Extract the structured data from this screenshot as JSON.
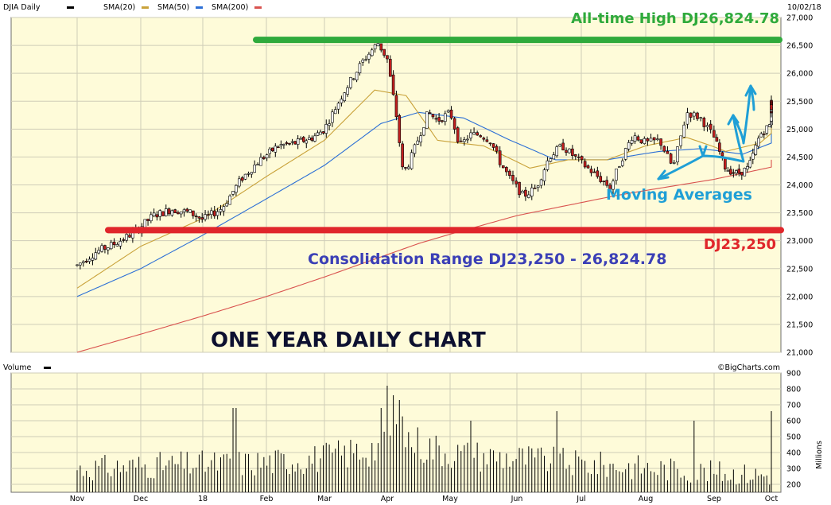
{
  "header": {
    "symbol_label": "DJIA Daily",
    "legend": [
      {
        "label": "SMA(20)",
        "color": "#c9a23a"
      },
      {
        "label": "SMA(50)",
        "color": "#2c6fd6"
      },
      {
        "label": "SMA(200)",
        "color": "#d9534f"
      }
    ],
    "date": "10/02/18"
  },
  "volume_panel": {
    "label": "Volume",
    "credit": "©BigCharts.com",
    "unit_label": "Millions"
  },
  "annotations": {
    "all_time_high": "All-time High DJ26,824.78",
    "support": "DJ23,250",
    "range": "Consolidation Range DJ23,250 - 26,824.78",
    "moving_averages": "Moving Averages",
    "chart_title": "ONE YEAR DAILY CHART"
  },
  "colors": {
    "plot_bg": "#fefbd9",
    "grid": "#cfcdb8",
    "ath_line": "#2faa3c",
    "support_line": "#e0262b",
    "sma20": "#c9a23a",
    "sma50": "#2c6fd6",
    "sma200": "#d9534f",
    "arrow": "#1f9fd6"
  },
  "chart_data": [
    {
      "type": "candlestick",
      "name": "DJIA Daily",
      "x_ticks": [
        "Nov",
        "Dec",
        "18",
        "Feb",
        "Mar",
        "Apr",
        "May",
        "Jun",
        "Jul",
        "Aug",
        "Sep",
        "Oct"
      ],
      "y_ticks": [
        "27,000",
        "26,500",
        "26,000",
        "25,500",
        "25,000",
        "24,500",
        "24,000",
        "23,500",
        "23,000",
        "22,500",
        "22,000",
        "21,500",
        "21,000"
      ],
      "ylim": [
        21000,
        27000
      ],
      "xlim_month": [
        0,
        11.6
      ],
      "grid": true,
      "price_points": [
        {
          "m": 0.0,
          "v": 22560
        },
        {
          "m": 0.3,
          "v": 22800
        },
        {
          "m": 0.6,
          "v": 22950
        },
        {
          "m": 0.9,
          "v": 23150
        },
        {
          "m": 1.2,
          "v": 23450
        },
        {
          "m": 1.5,
          "v": 23560
        },
        {
          "m": 1.8,
          "v": 23500
        },
        {
          "m": 2.0,
          "v": 23380
        },
        {
          "m": 2.3,
          "v": 23580
        },
        {
          "m": 2.6,
          "v": 24100
        },
        {
          "m": 2.9,
          "v": 24450
        },
        {
          "m": 3.2,
          "v": 24700
        },
        {
          "m": 3.5,
          "v": 24750
        },
        {
          "m": 3.8,
          "v": 24850
        },
        {
          "m": 4.0,
          "v": 25000
        },
        {
          "m": 4.3,
          "v": 25650
        },
        {
          "m": 4.6,
          "v": 26200
        },
        {
          "m": 4.85,
          "v": 26550
        },
        {
          "m": 5.0,
          "v": 26250
        },
        {
          "m": 5.15,
          "v": 25200
        },
        {
          "m": 5.25,
          "v": 24200
        },
        {
          "m": 5.35,
          "v": 24400
        },
        {
          "m": 5.5,
          "v": 24850
        },
        {
          "m": 5.65,
          "v": 25300
        },
        {
          "m": 5.8,
          "v": 25150
        },
        {
          "m": 6.0,
          "v": 25300
        },
        {
          "m": 6.15,
          "v": 24700
        },
        {
          "m": 6.3,
          "v": 24900
        },
        {
          "m": 6.45,
          "v": 24900
        },
        {
          "m": 6.6,
          "v": 24800
        },
        {
          "m": 6.75,
          "v": 24400
        },
        {
          "m": 6.9,
          "v": 24100
        },
        {
          "m": 7.1,
          "v": 23800
        },
        {
          "m": 7.3,
          "v": 23950
        },
        {
          "m": 7.5,
          "v": 24500
        },
        {
          "m": 7.7,
          "v": 24700
        },
        {
          "m": 7.9,
          "v": 24500
        },
        {
          "m": 8.1,
          "v": 24300
        },
        {
          "m": 8.3,
          "v": 24100
        },
        {
          "m": 8.45,
          "v": 23950
        },
        {
          "m": 8.6,
          "v": 24400
        },
        {
          "m": 8.8,
          "v": 24900
        },
        {
          "m": 9.0,
          "v": 24750
        },
        {
          "m": 9.2,
          "v": 24800
        },
        {
          "m": 9.4,
          "v": 24300
        },
        {
          "m": 9.6,
          "v": 25300
        },
        {
          "m": 9.8,
          "v": 25200
        },
        {
          "m": 10.0,
          "v": 24850
        },
        {
          "m": 10.2,
          "v": 24300
        },
        {
          "m": 10.4,
          "v": 24200
        },
        {
          "m": 10.6,
          "v": 24300
        },
        {
          "m": 10.8,
          "v": 24900
        },
        {
          "m": 11.0,
          "v": 25100
        },
        {
          "m": 11.2,
          "v": 25400
        },
        {
          "m": 11.4,
          "v": 25550
        },
        {
          "m": 11.6,
          "v": 25400
        }
      ],
      "sma20_points": [
        {
          "m": 0.0,
          "v": 22150
        },
        {
          "m": 1.0,
          "v": 22900
        },
        {
          "m": 2.0,
          "v": 23400
        },
        {
          "m": 3.0,
          "v": 24150
        },
        {
          "m": 4.0,
          "v": 24800
        },
        {
          "m": 4.8,
          "v": 25700
        },
        {
          "m": 5.3,
          "v": 25600
        },
        {
          "m": 5.8,
          "v": 24800
        },
        {
          "m": 6.5,
          "v": 24700
        },
        {
          "m": 7.2,
          "v": 24300
        },
        {
          "m": 7.8,
          "v": 24450
        },
        {
          "m": 8.4,
          "v": 24450
        },
        {
          "m": 9.0,
          "v": 24700
        },
        {
          "m": 9.6,
          "v": 24850
        },
        {
          "m": 10.2,
          "v": 24600
        },
        {
          "m": 10.8,
          "v": 24750
        },
        {
          "m": 11.6,
          "v": 25450
        }
      ],
      "sma50_points": [
        {
          "m": 0.0,
          "v": 22000
        },
        {
          "m": 1.0,
          "v": 22500
        },
        {
          "m": 2.0,
          "v": 23100
        },
        {
          "m": 3.0,
          "v": 23750
        },
        {
          "m": 4.0,
          "v": 24350
        },
        {
          "m": 4.9,
          "v": 25100
        },
        {
          "m": 5.5,
          "v": 25300
        },
        {
          "m": 6.2,
          "v": 25200
        },
        {
          "m": 6.9,
          "v": 24800
        },
        {
          "m": 7.6,
          "v": 24450
        },
        {
          "m": 8.4,
          "v": 24450
        },
        {
          "m": 9.2,
          "v": 24600
        },
        {
          "m": 9.8,
          "v": 24650
        },
        {
          "m": 10.5,
          "v": 24550
        },
        {
          "m": 11.0,
          "v": 24750
        },
        {
          "m": 11.6,
          "v": 25200
        }
      ],
      "sma200_points": [
        {
          "m": 0.0,
          "v": 21000
        },
        {
          "m": 2.0,
          "v": 21650
        },
        {
          "m": 4.0,
          "v": 22350
        },
        {
          "m": 5.5,
          "v": 22950
        },
        {
          "m": 7.0,
          "v": 23450
        },
        {
          "m": 8.5,
          "v": 23800
        },
        {
          "m": 10.0,
          "v": 24100
        },
        {
          "m": 11.6,
          "v": 24450
        }
      ],
      "resistance": 26824.78,
      "support": 23250
    },
    {
      "type": "bar",
      "name": "Volume",
      "y_ticks": [
        "900",
        "800",
        "700",
        "600",
        "500",
        "400",
        "300",
        "200"
      ],
      "ylim": [
        150,
        900
      ],
      "volume_levels": [
        {
          "m": 0.0,
          "v": 290
        },
        {
          "m": 1.0,
          "v": 310
        },
        {
          "m": 2.0,
          "v": 320
        },
        {
          "m": 3.0,
          "v": 330
        },
        {
          "m": 4.0,
          "v": 360
        },
        {
          "m": 4.8,
          "v": 420
        },
        {
          "m": 5.2,
          "v": 500
        },
        {
          "m": 5.6,
          "v": 430
        },
        {
          "m": 6.2,
          "v": 380
        },
        {
          "m": 7.0,
          "v": 360
        },
        {
          "m": 8.0,
          "v": 320
        },
        {
          "m": 9.0,
          "v": 300
        },
        {
          "m": 10.0,
          "v": 270
        },
        {
          "m": 11.0,
          "v": 250
        },
        {
          "m": 11.6,
          "v": 250
        }
      ],
      "volume_spikes": [
        {
          "m": 5.0,
          "v": 820
        },
        {
          "m": 5.1,
          "v": 760
        },
        {
          "m": 5.2,
          "v": 730
        },
        {
          "m": 4.9,
          "v": 680
        },
        {
          "m": 2.5,
          "v": 680
        },
        {
          "m": 7.6,
          "v": 660
        },
        {
          "m": 11.1,
          "v": 660
        },
        {
          "m": 9.7,
          "v": 600
        },
        {
          "m": 6.3,
          "v": 600
        }
      ]
    }
  ]
}
